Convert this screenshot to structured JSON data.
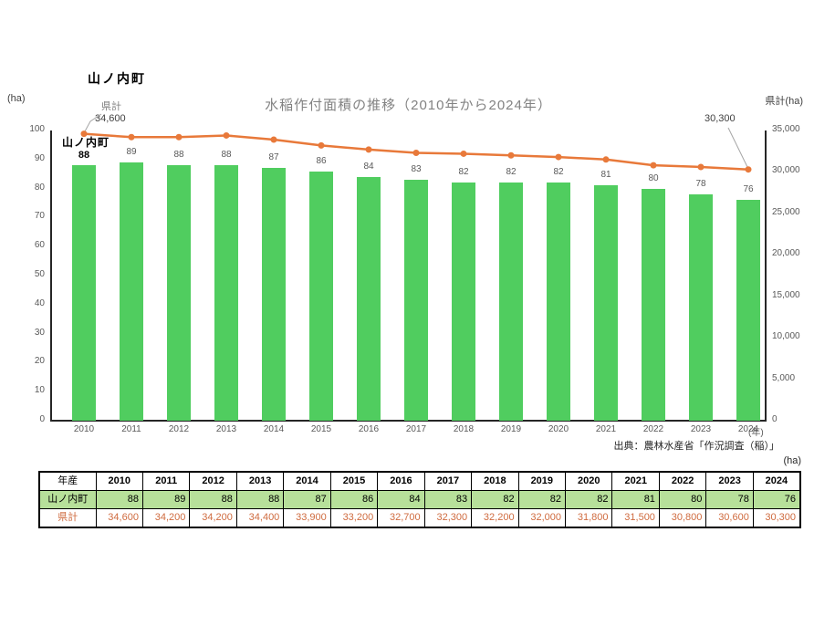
{
  "page": {
    "title": "山ノ内町"
  },
  "chart_data": {
    "type": "bar",
    "title": "水稲作付面積の推移（2010年から2024年）",
    "categories": [
      "2010",
      "2011",
      "2012",
      "2013",
      "2014",
      "2015",
      "2016",
      "2017",
      "2018",
      "2019",
      "2020",
      "2021",
      "2022",
      "2023",
      "2024"
    ],
    "series": [
      {
        "name": "山ノ内町",
        "type": "bar",
        "axis": "left",
        "color": "#50CD5F",
        "values": [
          88,
          89,
          88,
          88,
          87,
          86,
          84,
          83,
          82,
          82,
          82,
          81,
          80,
          78,
          76
        ]
      },
      {
        "name": "県計",
        "type": "line",
        "axis": "right",
        "color": "#E8793A",
        "values": [
          34600,
          34200,
          34200,
          34400,
          33900,
          33200,
          32700,
          32300,
          32200,
          32000,
          31800,
          31500,
          30800,
          30600,
          30300
        ]
      }
    ],
    "left_axis": {
      "unit": "(ha)",
      "min": 0,
      "max": 100,
      "step": 10
    },
    "right_axis": {
      "unit": "県計(ha)",
      "min": 0,
      "max": 35000,
      "step": 5000
    },
    "x_axis_suffix": "(年)",
    "grid": false,
    "legend_position": "none",
    "annotations": {
      "line_start_label": "県計",
      "line_start_value": "34,600",
      "line_end_value": "30,300",
      "bar_label": "山ノ内町",
      "first_bar_value": "88"
    }
  },
  "source": "出典：農林水産省「作況調査（稲）」",
  "table": {
    "unit_label": "(ha)",
    "header": [
      "年産",
      "2010",
      "2011",
      "2012",
      "2013",
      "2014",
      "2015",
      "2016",
      "2017",
      "2018",
      "2019",
      "2020",
      "2021",
      "2022",
      "2023",
      "2024"
    ],
    "rows": [
      {
        "label": "山ノ内町",
        "values": [
          "88",
          "89",
          "88",
          "88",
          "87",
          "86",
          "84",
          "83",
          "82",
          "82",
          "82",
          "81",
          "80",
          "78",
          "76"
        ]
      },
      {
        "label": "県計",
        "values": [
          "34,600",
          "34,200",
          "34,200",
          "34,400",
          "33,900",
          "33,200",
          "32,700",
          "32,300",
          "32,200",
          "32,000",
          "31,800",
          "31,500",
          "30,800",
          "30,600",
          "30,300"
        ]
      }
    ]
  }
}
